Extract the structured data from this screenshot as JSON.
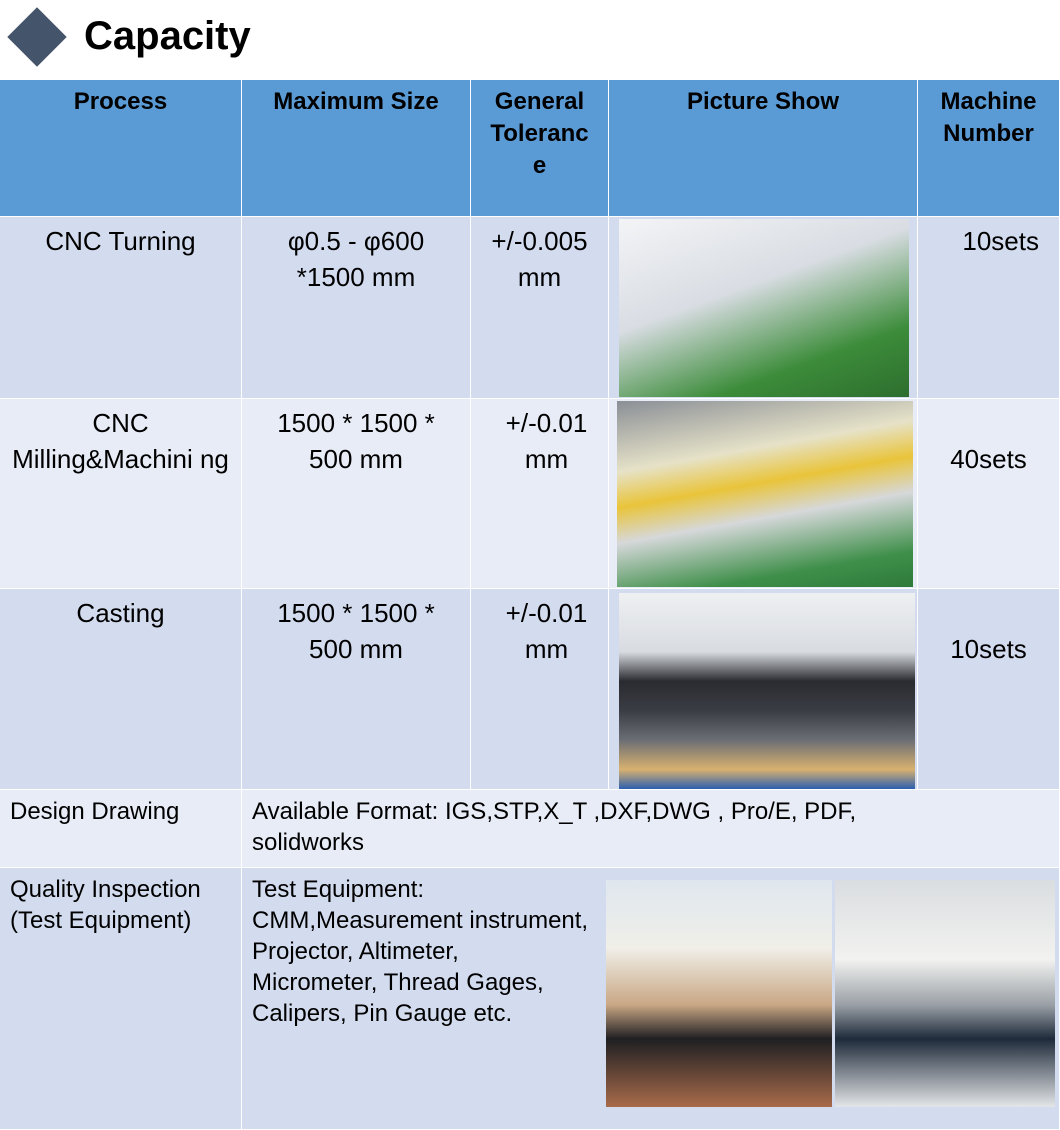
{
  "title": "Capacity",
  "headers": [
    "Process",
    "Maximum Size",
    "General Toleranc e",
    "Picture Show",
    "Machine Number"
  ],
  "rows": [
    {
      "process": "CNC Turning",
      "size": "φ0.5 - φ600 *1500 mm",
      "tolerance": "+/-0.005 mm",
      "picture": "cnc-turning-workshop-photo",
      "number": "10sets"
    },
    {
      "process": "CNC Milling&Machini ng",
      "size": "1500 * 1500 * 500 mm",
      "tolerance": "+/-0.01 mm",
      "picture": "cnc-milling-workshop-photo",
      "number": "40sets"
    },
    {
      "process": "Casting",
      "size": "1500 * 1500 * 500 mm",
      "tolerance": "+/-0.01 mm",
      "picture": "casting-machine-photo",
      "number": "10sets"
    }
  ],
  "design": {
    "label": "Design Drawing",
    "value": "Available Format: IGS,STP,X_T ,DXF,DWG , Pro/E, PDF, solidworks"
  },
  "quality": {
    "label": "Quality Inspection (Test Equipment)",
    "value": "Test Equipment: CMM,Measurement instrument, Projector, Altimeter, Micrometer, Thread Gages, Calipers, Pin Gauge etc."
  },
  "colors": {
    "header": "#5b9bd5",
    "row_dark": "#d3dcef",
    "row_light": "#e8ecf6",
    "diamond": "#44546a"
  }
}
